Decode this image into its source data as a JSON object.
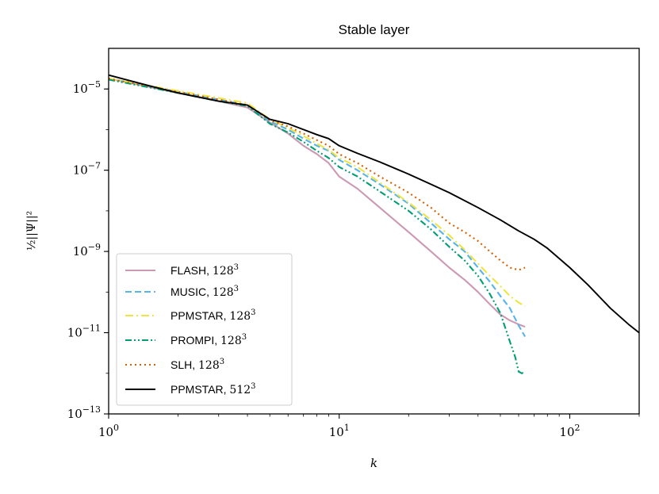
{
  "chart_data": {
    "type": "line",
    "title": "Stable layer",
    "xlabel": "k",
    "ylabel": "½||Ψ||²",
    "xscale": "log",
    "yscale": "log",
    "xlim": [
      1,
      200
    ],
    "ylim": [
      1e-13,
      0.0001
    ],
    "x_ticks": [
      {
        "value": 1,
        "mantissa": "10",
        "exp": "0"
      },
      {
        "value": 10,
        "mantissa": "10",
        "exp": "1"
      },
      {
        "value": 100,
        "mantissa": "10",
        "exp": "2"
      }
    ],
    "y_ticks": [
      {
        "value": 1e-05,
        "mantissa": "10",
        "exp": "−5"
      },
      {
        "value": 1e-07,
        "mantissa": "10",
        "exp": "−7"
      },
      {
        "value": 1e-09,
        "mantissa": "10",
        "exp": "−9"
      },
      {
        "value": 1e-11,
        "mantissa": "10",
        "exp": "−11"
      },
      {
        "value": 1e-13,
        "mantissa": "10",
        "exp": "−13"
      }
    ],
    "legend_position": "lower-left",
    "series": [
      {
        "name": "FLASH",
        "resolution": "128",
        "res_exp": "3",
        "color": "#cc99b2",
        "dash": "",
        "x": [
          1,
          2,
          3,
          4,
          5,
          6,
          7,
          8,
          9,
          10,
          12,
          15,
          20,
          25,
          30,
          35,
          40,
          45,
          50,
          55,
          60,
          64
        ],
        "y": [
          1.8e-05,
          8e-06,
          5e-06,
          3.5e-06,
          1.5e-06,
          8e-07,
          4e-07,
          2.5e-07,
          1.5e-07,
          7e-08,
          3.5e-08,
          1.2e-08,
          3e-09,
          1e-09,
          4e-10,
          2e-10,
          1e-10,
          5e-11,
          2.8e-11,
          2e-11,
          1.6e-11,
          1.4e-11
        ]
      },
      {
        "name": "MUSIC",
        "resolution": "128",
        "res_exp": "3",
        "color": "#56b4e9",
        "dash": "8,4",
        "x": [
          1,
          2,
          3,
          4,
          5,
          6,
          7,
          8,
          9,
          10,
          12,
          15,
          20,
          25,
          30,
          35,
          40,
          45,
          50,
          55,
          60,
          64
        ],
        "y": [
          1.8e-05,
          8.5e-06,
          5.5e-06,
          4e-06,
          1.6e-06,
          1e-06,
          6e-07,
          4e-07,
          3e-07,
          1.8e-07,
          1e-07,
          4.5e-08,
          1.5e-08,
          5e-09,
          2e-09,
          1e-09,
          4e-10,
          1.8e-10,
          8e-11,
          4e-11,
          1.5e-11,
          8e-12
        ]
      },
      {
        "name": "PPMSTAR",
        "resolution": "128",
        "res_exp": "3",
        "color": "#f0e442",
        "dash": "10,4,2,4",
        "x": [
          1,
          2,
          3,
          4,
          5,
          6,
          7,
          8,
          9,
          10,
          12,
          15,
          20,
          25,
          30,
          35,
          40,
          45,
          50,
          55,
          60,
          64
        ],
        "y": [
          1.8e-05,
          9e-06,
          6e-06,
          4.5e-06,
          1.8e-06,
          1.1e-06,
          7e-07,
          4.5e-07,
          3.2e-07,
          2e-07,
          1.2e-07,
          5e-08,
          1.6e-08,
          6e-09,
          2.5e-09,
          1.1e-09,
          5e-10,
          2.5e-10,
          1.4e-10,
          8e-11,
          5.5e-11,
          4.5e-11
        ]
      },
      {
        "name": "PROMPI",
        "resolution": "128",
        "res_exp": "3",
        "color": "#009e73",
        "dash": "8,3,2,3,2,3",
        "x": [
          1,
          2,
          3,
          4,
          5,
          6,
          7,
          8,
          9,
          10,
          12,
          15,
          20,
          25,
          30,
          35,
          40,
          45,
          50,
          55,
          58,
          60,
          62,
          64
        ],
        "y": [
          1.7e-05,
          8e-06,
          5e-06,
          3.8e-06,
          1.4e-06,
          8.5e-07,
          5e-07,
          3e-07,
          2e-07,
          1.2e-07,
          7e-08,
          3e-08,
          1e-08,
          3.5e-09,
          1.3e-09,
          6e-10,
          2.5e-10,
          9e-11,
          3e-11,
          6e-12,
          2.5e-12,
          1.1e-12,
          1e-12,
          1.1e-12
        ]
      },
      {
        "name": "SLH",
        "resolution": "128",
        "res_exp": "3",
        "color": "#d55e00",
        "dash": "2,4",
        "x": [
          1,
          2,
          3,
          4,
          5,
          6,
          7,
          8,
          9,
          10,
          12,
          15,
          20,
          25,
          30,
          35,
          40,
          45,
          50,
          55,
          60,
          64
        ],
        "y": [
          1.8e-05,
          8.5e-06,
          5.5e-06,
          4e-06,
          1.7e-06,
          1.2e-06,
          8e-07,
          5.5e-07,
          4e-07,
          2.5e-07,
          1.5e-07,
          7e-08,
          2.8e-08,
          1.2e-08,
          5e-09,
          3e-09,
          1.8e-09,
          1e-09,
          6e-10,
          4e-10,
          3.5e-10,
          4e-10
        ]
      },
      {
        "name": "PPMSTAR",
        "resolution": "512",
        "res_exp": "3",
        "color": "#000000",
        "dash": "",
        "x": [
          1,
          1.5,
          2,
          3,
          4,
          5,
          6,
          7,
          8,
          9,
          10,
          12,
          15,
          20,
          25,
          30,
          40,
          50,
          60,
          70,
          80,
          100,
          120,
          150,
          180,
          200
        ],
        "y": [
          2.2e-05,
          1.2e-05,
          8e-06,
          5e-06,
          4e-06,
          1.8e-06,
          1.4e-06,
          1e-06,
          7.5e-07,
          6e-07,
          4e-07,
          2.6e-07,
          1.6e-07,
          8e-08,
          4.5e-08,
          2.8e-08,
          1.2e-08,
          6e-09,
          3.2e-09,
          2e-09,
          1.2e-09,
          4e-10,
          1.5e-10,
          4e-11,
          1.6e-11,
          1e-11
        ]
      }
    ]
  }
}
